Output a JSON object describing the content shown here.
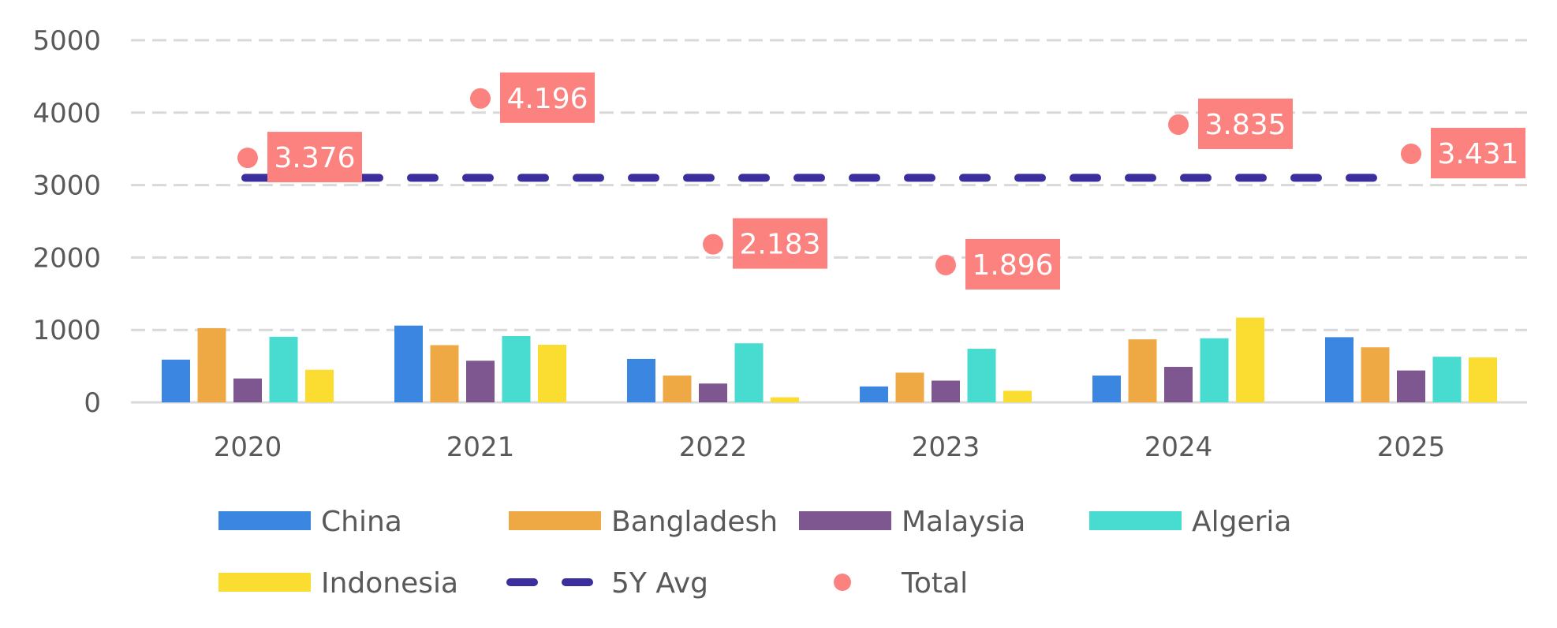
{
  "chart_data": {
    "type": "bar",
    "categories": [
      "2020",
      "2021",
      "2022",
      "2023",
      "2024",
      "2025"
    ],
    "ylim": [
      0,
      5000
    ],
    "yticks": [
      "0",
      "1000",
      "2000",
      "3000",
      "4000",
      "5000"
    ],
    "grid": true,
    "legend_position": "bottom",
    "series": [
      {
        "name": "China",
        "color": "#3B86E0",
        "values": [
          590,
          1060,
          600,
          220,
          370,
          900
        ]
      },
      {
        "name": "Bangladesh",
        "color": "#EFA944",
        "values": [
          1025,
          790,
          370,
          410,
          870,
          760
        ]
      },
      {
        "name": "Malaysia",
        "color": "#7E5690",
        "values": [
          330,
          575,
          260,
          300,
          490,
          440
        ]
      },
      {
        "name": "Algeria",
        "color": "#48DBCF",
        "values": [
          905,
          915,
          815,
          740,
          885,
          630
        ]
      },
      {
        "name": "Indonesia",
        "color": "#FBDC30",
        "values": [
          450,
          795,
          70,
          160,
          1170,
          620
        ]
      }
    ],
    "avg": {
      "name": "5Y Avg",
      "color": "#3A2F9C",
      "value": 3100
    },
    "total": {
      "name": "Total",
      "color": "#FB827E",
      "values": [
        3376,
        4196,
        2183,
        1896,
        3835,
        3431
      ],
      "labels": [
        "3.376",
        "4.196",
        "2.183",
        "1.896",
        "3.835",
        "3.431"
      ]
    }
  }
}
